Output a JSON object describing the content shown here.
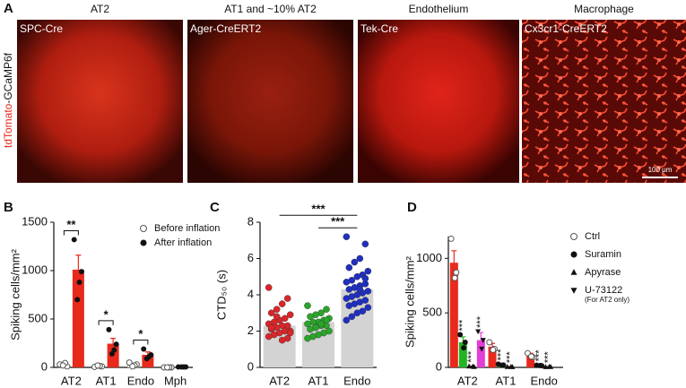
{
  "panel_labels": [
    "A",
    "B",
    "C",
    "D"
  ],
  "image_ylabel": {
    "red": "tdTomato",
    "rest": "-GCaMP6f"
  },
  "images": [
    {
      "header": "AT2",
      "label": "SPC-Cre"
    },
    {
      "header": "AT1 and ~10% AT2",
      "label": "Ager-CreERT2"
    },
    {
      "header": "Endothelium",
      "label": "Tek-Cre"
    },
    {
      "header": "Macrophage",
      "label": "Cx3cr1-CreERT2"
    }
  ],
  "scale_bar": "100 μm",
  "chart_data": [
    {
      "type": "bar",
      "y_label": "Spiking cells/mm²",
      "categories": [
        "AT2",
        "AT1",
        "Endo",
        "Mph"
      ],
      "ylim": [
        0,
        1500
      ],
      "yticks": [
        0,
        500,
        1000,
        1500
      ],
      "series": [
        {
          "name": "Before inflation",
          "color": "#ffffff",
          "marker": "open-circle",
          "values": [
            25,
            12,
            30,
            2
          ],
          "errors": [
            8,
            5,
            10,
            1
          ],
          "points": [
            [
              30,
              10,
              45,
              20
            ],
            [
              5,
              10,
              15,
              20
            ],
            [
              50,
              30,
              20,
              10
            ],
            [
              0,
              0,
              0,
              0
            ]
          ]
        },
        {
          "name": "After inflation",
          "color": "#e8291c",
          "marker": "circle",
          "values": [
            1010,
            245,
            130,
            5
          ],
          "errors": [
            150,
            55,
            30,
            2
          ],
          "points": [
            [
              1320,
              990,
              880,
              700
            ],
            [
              390,
              240,
              180,
              140
            ],
            [
              190,
              130,
              110,
              90
            ],
            [
              5,
              5,
              5,
              5
            ]
          ]
        }
      ],
      "significance": [
        {
          "from": [
            0,
            0
          ],
          "to": [
            0,
            1
          ],
          "label": "**"
        },
        {
          "from": [
            1,
            0
          ],
          "to": [
            1,
            1
          ],
          "label": "*"
        },
        {
          "from": [
            2,
            0
          ],
          "to": [
            2,
            1
          ],
          "label": "*"
        }
      ]
    },
    {
      "type": "bar",
      "y_label": "CTD₅₀ (s)",
      "categories": [
        "AT2",
        "AT1",
        "Endo"
      ],
      "ylim": [
        0,
        8
      ],
      "yticks": [
        0,
        2,
        4,
        6,
        8
      ],
      "series": [
        {
          "color": "#d3d3d3",
          "marker": "circle",
          "point_colors": [
            "#d9262a",
            "#2aa52a",
            "#1f2fbf"
          ],
          "values": [
            2.3,
            2.5,
            4.3
          ],
          "points": [
            [
              4.4,
              3.8,
              3.5,
              3.2,
              3.0,
              2.9,
              2.7,
              2.6,
              2.5,
              2.4,
              2.3,
              2.3,
              2.2,
              2.1,
              2.0,
              2.0,
              1.9,
              1.8,
              1.7,
              1.6,
              1.5,
              2.8,
              2.2,
              1.9
            ],
            [
              3.4,
              3.2,
              3.0,
              2.9,
              2.8,
              2.7,
              2.6,
              2.5,
              2.5,
              2.4,
              2.3,
              2.3,
              2.2,
              2.1,
              2.0,
              1.9,
              1.8,
              1.7,
              1.6,
              2.6,
              2.4,
              2.2
            ],
            [
              7.2,
              6.8,
              6.0,
              5.8,
              5.5,
              5.3,
              5.1,
              5.0,
              4.8,
              4.7,
              4.6,
              4.5,
              4.4,
              4.3,
              4.2,
              4.1,
              4.0,
              3.9,
              3.8,
              3.7,
              3.6,
              3.5,
              3.4,
              3.3,
              3.1,
              3.0,
              2.8,
              2.6,
              4.9,
              4.3
            ]
          ]
        }
      ],
      "significance": [
        {
          "from": [
            1,
            0
          ],
          "to": [
            2,
            0
          ],
          "label": "***"
        },
        {
          "from": [
            0,
            0
          ],
          "to": [
            2,
            0
          ],
          "label": "***"
        }
      ]
    },
    {
      "type": "bar",
      "y_label": "Spiking cells/mm²",
      "categories": [
        "AT2",
        "AT1",
        "Endo"
      ],
      "ylim": [
        0,
        1200
      ],
      "yticks": [
        0,
        500,
        1000
      ],
      "series": [
        {
          "name": "Ctrl",
          "color": "#e8291c",
          "marker": "open-circle",
          "values": [
            960,
            190,
            110
          ],
          "errors": [
            110,
            30,
            20
          ],
          "points": [
            [
              1180,
              870,
              820
            ],
            [
              230,
              170,
              160
            ],
            [
              130,
              95,
              100
            ]
          ]
        },
        {
          "name": "Suramin",
          "color": "#22b422",
          "marker": "circle",
          "values": [
            230,
            25,
            18
          ],
          "errors": [
            50,
            5,
            4
          ],
          "points": [
            [
              300,
              230,
              180
            ],
            [
              30,
              22,
              20
            ],
            [
              20,
              15,
              17
            ]
          ]
        },
        {
          "name": "Apyrase",
          "color": "#a01c1c",
          "marker": "triangle",
          "values": [
            8,
            5,
            5
          ],
          "errors": [
            3,
            2,
            2
          ],
          "points": [
            [
              10,
              5,
              8
            ],
            [
              5,
              4,
              6
            ],
            [
              4,
              5,
              6
            ]
          ]
        },
        {
          "name": "U-73122",
          "note": "(For AT2 only)",
          "color": "#e23fd6",
          "marker": "inverted-triangle",
          "values": [
            250,
            null,
            null
          ],
          "errors": [
            70,
            null,
            null
          ],
          "points": [
            [
              330,
              250,
              170
            ],
            [],
            []
          ]
        }
      ],
      "significance": [
        {
          "at": [
            0,
            1
          ],
          "label": "***"
        },
        {
          "at": [
            0,
            2
          ],
          "label": "***"
        },
        {
          "at": [
            0,
            3
          ],
          "label": "***"
        },
        {
          "at": [
            1,
            1
          ],
          "label": "***"
        },
        {
          "at": [
            1,
            2
          ],
          "label": "***"
        },
        {
          "at": [
            2,
            1
          ],
          "label": "***"
        },
        {
          "at": [
            2,
            2
          ],
          "label": "***"
        }
      ]
    }
  ]
}
